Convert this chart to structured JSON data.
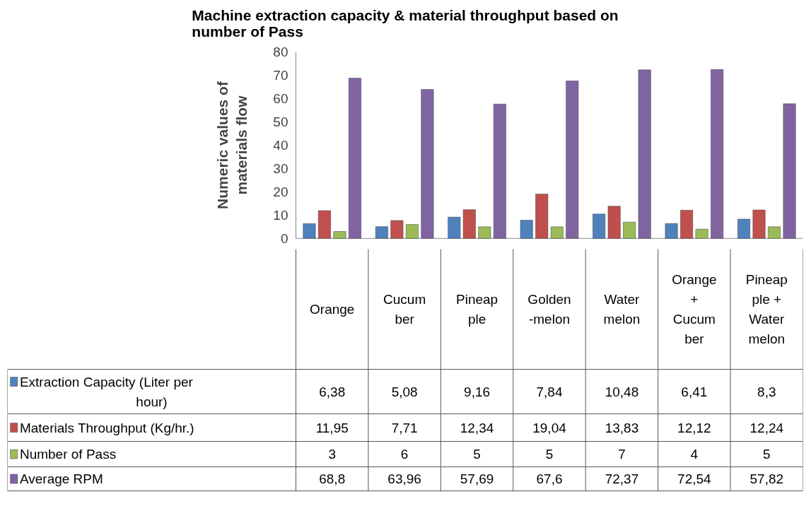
{
  "chart_data": {
    "type": "bar",
    "title": "Machine extraction capacity & material throughput based on number of Pass",
    "ylabel": "Numeric values of materials flow",
    "categories": [
      "Orange",
      "Cucum ber",
      "Pineap ple",
      "Golden -melon",
      "Water melon",
      "Orange + Cucum ber",
      "Pineap ple + Water melon"
    ],
    "series": [
      {
        "name": "Extraction Capacity (Liter per hour)",
        "color": "#4f81bd",
        "values": [
          6.38,
          5.08,
          9.16,
          7.84,
          10.48,
          6.41,
          8.3
        ],
        "value_labels": [
          "6,38",
          "5,08",
          "9,16",
          "7,84",
          "10,48",
          "6,41",
          "8,3"
        ]
      },
      {
        "name": "Materials Throughput (Kg/hr.)",
        "color": "#c0504d",
        "values": [
          11.95,
          7.71,
          12.34,
          19.04,
          13.83,
          12.12,
          12.24
        ],
        "value_labels": [
          "11,95",
          "7,71",
          "12,34",
          "19,04",
          "13,83",
          "12,12",
          "12,24"
        ]
      },
      {
        "name": "Number of Pass",
        "color": "#9bbb59",
        "values": [
          3,
          6,
          5,
          5,
          7,
          4,
          5
        ],
        "value_labels": [
          "3",
          "6",
          "5",
          "5",
          "7",
          "4",
          "5"
        ]
      },
      {
        "name": "Average RPM",
        "color": "#8064a2",
        "values": [
          68.8,
          63.96,
          57.69,
          67.6,
          72.37,
          72.54,
          57.82
        ],
        "value_labels": [
          "68,8",
          "63,96",
          "57,69",
          "67,6",
          "72,37",
          "72,54",
          "57,82"
        ]
      }
    ],
    "ylim": [
      0,
      80
    ],
    "yticks": [
      0,
      10,
      20,
      30,
      40,
      50,
      60,
      70,
      80
    ],
    "grid": false,
    "legend": "bottom"
  }
}
